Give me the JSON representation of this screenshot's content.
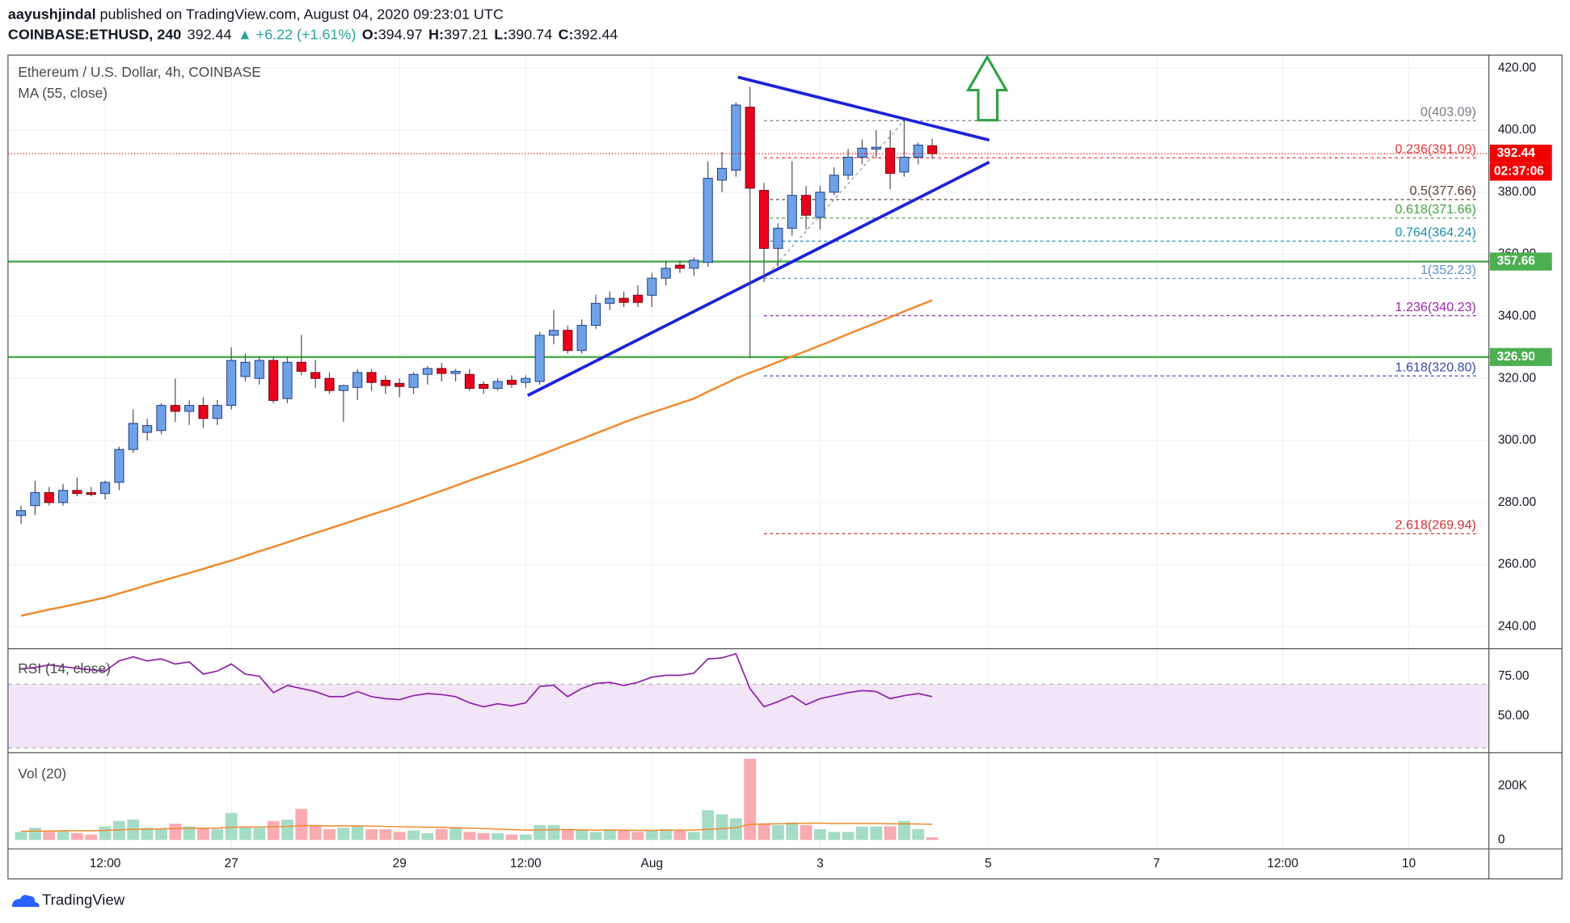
{
  "header": {
    "author": "aayushjindal",
    "published": "published on TradingView.com, August 04, 2020 09:23:01 UTC",
    "symbol": "COINBASE:ETHUSD, 240",
    "change": "▲ +6.22 (+1.61%)",
    "o": "O:",
    "h": "H:",
    "l": "L:",
    "c": "C:"
  },
  "logo": "TradingView",
  "chart_data": {
    "type": "candlestick",
    "title": "Ethereum / U.S. Dollar, 4h, COINBASE",
    "ma_label": "MA (55, close)",
    "up_color": "#6fa1e6",
    "up_border": "#1f3f8a",
    "down_color": "#e8001c",
    "down_border": "#7a0010",
    "wick_color": "#555555",
    "ohlc": [
      [
        275.8,
        279,
        273,
        277.4
      ],
      [
        279.0,
        287,
        276,
        283.2
      ],
      [
        283.2,
        285,
        279,
        280.0
      ],
      [
        280.0,
        286,
        279,
        283.9
      ],
      [
        283.9,
        288,
        282,
        282.9
      ],
      [
        283.2,
        285,
        282,
        282.6
      ],
      [
        282.9,
        287,
        281,
        286.5
      ],
      [
        286.5,
        298,
        284,
        297.1
      ],
      [
        297.1,
        310,
        296,
        305.5
      ],
      [
        302.6,
        307,
        300,
        304.8
      ],
      [
        303.2,
        312,
        302,
        311.3
      ],
      [
        311.3,
        320,
        306,
        309.4
      ],
      [
        309.4,
        313,
        305,
        311.3
      ],
      [
        311.3,
        314,
        304,
        307.1
      ],
      [
        307.1,
        313,
        305,
        311.3
      ],
      [
        311.3,
        330,
        310,
        325.8
      ],
      [
        320.6,
        328,
        319,
        325.2
      ],
      [
        320.0,
        327,
        318,
        325.8
      ],
      [
        325.8,
        327,
        312,
        312.9
      ],
      [
        313.5,
        327,
        312,
        325.2
      ],
      [
        325.2,
        334,
        321,
        322.3
      ],
      [
        321.9,
        326,
        317,
        320.0
      ],
      [
        320.0,
        322,
        315,
        316.1
      ],
      [
        316.1,
        318,
        306,
        317.7
      ],
      [
        317.1,
        323,
        313,
        321.9
      ],
      [
        321.9,
        323,
        316,
        318.7
      ],
      [
        319.4,
        321,
        315,
        317.7
      ],
      [
        318.4,
        320,
        314,
        317.4
      ],
      [
        317.1,
        322,
        315,
        321.3
      ],
      [
        321.3,
        324,
        318,
        323.2
      ],
      [
        323.2,
        325,
        319,
        321.6
      ],
      [
        321.6,
        323,
        319,
        322.3
      ],
      [
        321.3,
        323,
        316,
        316.8
      ],
      [
        318.1,
        319,
        315,
        316.8
      ],
      [
        316.8,
        320,
        316,
        319.0
      ],
      [
        319.4,
        321,
        317,
        318.1
      ],
      [
        318.7,
        321,
        317,
        320.0
      ],
      [
        319.0,
        335,
        318,
        333.9
      ],
      [
        333.9,
        342,
        331,
        335.5
      ],
      [
        335.5,
        337,
        328,
        329.0
      ],
      [
        329.0,
        339,
        328,
        337.1
      ],
      [
        337.1,
        347,
        336,
        344.2
      ],
      [
        344.2,
        348,
        342,
        345.8
      ],
      [
        345.8,
        348,
        343,
        344.5
      ],
      [
        346.8,
        350,
        343,
        344.5
      ],
      [
        346.8,
        354,
        343,
        352.3
      ],
      [
        352.3,
        358,
        350,
        355.5
      ],
      [
        356.5,
        358,
        354,
        355.5
      ],
      [
        355.5,
        359,
        353,
        358.1
      ],
      [
        357.4,
        390,
        356,
        384.5
      ],
      [
        383.9,
        393,
        380,
        387.7
      ],
      [
        387.1,
        409,
        385,
        408.1
      ],
      [
        407.4,
        414,
        326.5,
        381.3
      ],
      [
        380.6,
        383,
        351,
        361.9
      ],
      [
        361.9,
        370,
        356,
        368.4
      ],
      [
        368.4,
        390,
        366,
        379.0
      ],
      [
        379.0,
        382,
        368,
        372.6
      ],
      [
        371.9,
        382,
        368,
        380.0
      ],
      [
        380.0,
        388,
        379,
        385.5
      ],
      [
        385.5,
        394,
        384,
        391.3
      ],
      [
        391.3,
        397,
        389,
        394.2
      ],
      [
        393.9,
        400,
        391,
        394.5
      ],
      [
        394.2,
        400,
        381,
        386.1
      ],
      [
        386.5,
        403.09,
        385,
        391.3
      ],
      [
        391.3,
        396,
        389,
        395.2
      ],
      [
        394.97,
        397.21,
        390.74,
        392.44
      ]
    ],
    "ma": {
      "color": "#f0892c",
      "values": [
        243.5,
        244.5,
        245.5,
        246.4,
        247.4,
        248.4,
        249.4,
        250.7,
        252.0,
        253.4,
        254.7,
        256.0,
        257.3,
        258.6,
        260.0,
        261.3,
        262.8,
        264.3,
        265.7,
        267.2,
        268.7,
        270.2,
        271.6,
        273.1,
        274.6,
        276.1,
        277.5,
        279.0,
        280.6,
        282.2,
        283.8,
        285.4,
        287.1,
        288.7,
        290.3,
        291.9,
        293.5,
        295.3,
        297.0,
        298.8,
        300.5,
        302.3,
        304.0,
        305.8,
        307.5,
        309.0,
        310.5,
        312.0,
        313.5,
        315.7,
        317.8,
        320.0,
        321.8,
        323.5,
        325.3,
        327.1,
        328.8,
        330.6,
        332.4,
        334.3,
        336.1,
        337.9,
        339.7,
        341.6,
        343.4,
        345.2
      ]
    },
    "xlim": [
      -0.93,
      104.71
    ],
    "xticks": [
      {
        "value": 6,
        "label": "12:00"
      },
      {
        "value": 15,
        "label": "27"
      },
      {
        "value": 27,
        "label": "29"
      },
      {
        "value": 36,
        "label": "12:00"
      },
      {
        "value": 45,
        "label": "Aug"
      },
      {
        "value": 57,
        "label": "3"
      },
      {
        "value": 69,
        "label": "5"
      },
      {
        "value": 81,
        "label": "7"
      },
      {
        "value": 90,
        "label": "12:00"
      },
      {
        "value": 99,
        "label": "10"
      }
    ],
    "ylim": [
      232.9,
      424.2
    ],
    "yticks": [
      {
        "value": 240,
        "label": "240.00"
      },
      {
        "value": 260,
        "label": "260.00"
      },
      {
        "value": 280,
        "label": "280.00"
      },
      {
        "value": 300,
        "label": "300.00"
      },
      {
        "value": 320,
        "label": "320.00"
      },
      {
        "value": 340,
        "label": "340.00"
      },
      {
        "value": 360,
        "label": "360.00"
      },
      {
        "value": 380,
        "label": "380.00"
      },
      {
        "value": 400,
        "label": "400.00"
      },
      {
        "value": 420,
        "label": "420.00"
      }
    ],
    "grid": true,
    "last_price_color": "#f00000",
    "countdown": "02:37:06",
    "levels": [
      {
        "value": 357.66,
        "label": "357.66",
        "color": "#4caf50"
      },
      {
        "value": 326.9,
        "label": "326.90",
        "color": "#4caf50"
      }
    ],
    "fib": {
      "x": [
        53,
        103.8
      ],
      "anchor_x": [
        53,
        63
      ],
      "levels": [
        {
          "label": "0(403.09)",
          "value": 403.09,
          "color": "#787b86"
        },
        {
          "label": "0.236(391.09)",
          "value": 391.09,
          "color": "#e53935"
        },
        {
          "label": "0.5(377.66)",
          "value": 377.66,
          "color": "#5d4037"
        },
        {
          "label": "0.618(371.66)",
          "value": 371.66,
          "color": "#43a047"
        },
        {
          "label": "0.764(364.24)",
          "value": 364.24,
          "color": "#1e8fb0"
        },
        {
          "label": "1(352.23)",
          "value": 352.23,
          "color": "#5d8fd6"
        },
        {
          "label": "1.236(340.23)",
          "value": 340.23,
          "color": "#9c27b0"
        },
        {
          "label": "1.618(320.80)",
          "value": 320.8,
          "color": "#3949ab"
        },
        {
          "label": "2.618(269.94)",
          "value": 269.94,
          "color": "#d32f2f"
        }
      ]
    },
    "trendlines": [
      {
        "x": [
          51.14,
          69.07
        ],
        "y": [
          417.1,
          396.8
        ],
        "color": "#1e22d6"
      },
      {
        "x": [
          36.14,
          69.07
        ],
        "y": [
          314.5,
          389.7
        ],
        "color": "#1e22d6"
      }
    ],
    "rsi": {
      "title": "RSI (14, close)",
      "color": "#8e24aa",
      "ylim": [
        26.9,
        92.3
      ],
      "band": [
        30,
        70
      ],
      "band_color": "#f3e5f8",
      "yticks": [
        {
          "value": 50,
          "label": "50.00"
        },
        {
          "value": 75,
          "label": "75.00"
        }
      ],
      "values": [
        79.5,
        80.5,
        82.1,
        81,
        80,
        79,
        78.2,
        84.6,
        87.2,
        84.6,
        85.9,
        82.7,
        84.0,
        76.3,
        78.2,
        82.7,
        76.3,
        75,
        64.7,
        69.2,
        67.3,
        65.4,
        62.2,
        62.2,
        65.4,
        62.2,
        60.9,
        60.3,
        62.8,
        64.1,
        63.5,
        62.2,
        58.3,
        55.8,
        57.7,
        56.4,
        58.3,
        68.6,
        69.2,
        62.2,
        67.3,
        70.5,
        71.2,
        69.2,
        71.2,
        74.4,
        75.6,
        75.6,
        76.9,
        85.9,
        86.5,
        89.1,
        67.3,
        55.8,
        59.0,
        62.8,
        57.1,
        60.9,
        62.8,
        64.7,
        66.0,
        65.4,
        60.9,
        62.8,
        64.1,
        62.2
      ]
    },
    "volume": {
      "title": "Vol (20)",
      "up_color": "#a5dcc6",
      "down_color": "#f8abb0",
      "ma_color": "#f0892c",
      "ylim": [
        -33000,
        322000
      ],
      "yticks": [
        0,
        {
          "value": 200000,
          "label": "200K"
        }
      ],
      "values": [
        30000,
        45000,
        30000,
        35000,
        25000,
        20000,
        50000,
        70000,
        75000,
        45000,
        40000,
        60000,
        50000,
        45000,
        40000,
        100000,
        50000,
        45000,
        70000,
        75000,
        115000,
        55000,
        40000,
        45000,
        50000,
        40000,
        40000,
        30000,
        35000,
        25000,
        40000,
        45000,
        30000,
        25000,
        25000,
        20000,
        20000,
        55000,
        55000,
        40000,
        35000,
        30000,
        40000,
        35000,
        30000,
        35000,
        40000,
        35000,
        30000,
        110000,
        95000,
        80000,
        300000,
        60000,
        55000,
        65000,
        55000,
        40000,
        30000,
        30000,
        50000,
        50000,
        50000,
        70000,
        40000,
        10000
      ],
      "ma": [
        32000,
        33000,
        33000,
        34000,
        34000,
        34000,
        35000,
        37000,
        39000,
        40000,
        41000,
        42000,
        43000,
        43000,
        44000,
        47000,
        48000,
        48000,
        49000,
        50000,
        53000,
        53000,
        52000,
        52000,
        52000,
        51000,
        50000,
        49000,
        48000,
        47000,
        46000,
        45000,
        43000,
        42000,
        40000,
        38000,
        36000,
        37000,
        38000,
        38000,
        37000,
        36000,
        36000,
        36000,
        35000,
        35000,
        36000,
        36000,
        36000,
        39000,
        42000,
        45000,
        58000,
        59000,
        60000,
        61000,
        62000,
        62000,
        61000,
        61000,
        61000,
        61000,
        60000,
        60000,
        59000,
        58000
      ]
    }
  }
}
